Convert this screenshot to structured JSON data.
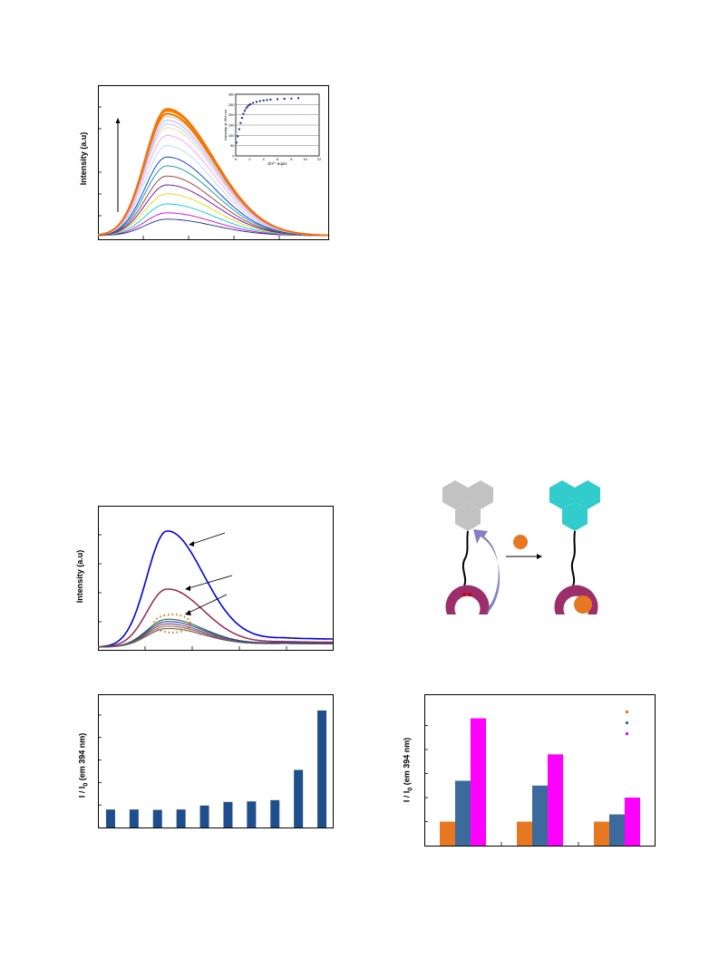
{
  "panels": {
    "spectrum_top": {
      "ylabel": "Intensity (a.u)"
    },
    "inset": {
      "ylabel": "Intensity at 394 nm",
      "xlabel": "Zn²⁺ equiv",
      "yticks": [
        "0",
        "50",
        "100",
        "150",
        "200",
        "250",
        "300"
      ],
      "xticks": [
        "0",
        "2",
        "4",
        "6",
        "8",
        "10",
        "12"
      ]
    },
    "spectrum_mid": {
      "ylabel": "Intensity (a.u)"
    },
    "bar_left": {
      "ylabel_main": "I / I",
      "ylabel_sub": "0",
      "ylabel_rest": " (em 394 nm)"
    },
    "bar_right": {
      "ylabel_main": "I / I",
      "ylabel_sub": "0",
      "ylabel_rest": " (em 394 nm)"
    }
  },
  "colors": {
    "orange": "#e87722",
    "blue_dark": "#1f4e8c",
    "steel": "#3c6a9c",
    "magenta": "#ff00ff",
    "gray_hex": "#c2c2c2",
    "cyan_hex": "#33cccc",
    "receptor": "#9c2f6a"
  },
  "chart_data": [
    {
      "type": "line",
      "panel": "top-spectrum",
      "series_count": 18,
      "peak_levels": [
        0.13,
        0.18,
        0.25,
        0.33,
        0.4,
        0.47,
        0.55,
        0.62,
        0.71,
        0.79,
        0.85,
        0.88,
        0.91,
        0.94,
        0.96,
        0.98,
        0.99,
        1.0
      ],
      "colors": [
        "#1b2a8c",
        "#cc00cc",
        "#00cccc",
        "#dddd00",
        "#6600aa",
        "#993333",
        "#009999",
        "#0033cc",
        "#aaddff",
        "#ff99ff",
        "#ffcc99",
        "#99ccff",
        "#cc99ff",
        "#ffb366",
        "#cc6600",
        "#ff9900",
        "#ff7f00",
        "#ff6600"
      ]
    },
    {
      "type": "scatter",
      "panel": "inset",
      "x": [
        0.1,
        0.3,
        0.5,
        0.7,
        0.9,
        1.1,
        1.3,
        1.5,
        1.7,
        1.9,
        2.1,
        2.5,
        3.0,
        3.5,
        4.0,
        4.5,
        5.0,
        6.0,
        7.0,
        8.0,
        9.0
      ],
      "y": [
        65,
        95,
        130,
        160,
        185,
        205,
        220,
        232,
        240,
        247,
        252,
        258,
        263,
        267,
        270,
        272,
        274,
        276,
        278,
        279,
        281
      ],
      "xlim": [
        0,
        12
      ],
      "ylim": [
        0,
        300
      ]
    },
    {
      "type": "line",
      "panel": "middle-spectrum",
      "series": [
        {
          "color": "#0000dd",
          "peak": 1.0,
          "tail": 0.1
        },
        {
          "color": "#993355",
          "peak": 0.5,
          "tail": 0.06
        },
        {
          "color": "#1a6b3a",
          "peak": 0.24,
          "tail": 0.05
        },
        {
          "color": "#2a3a9c",
          "peak": 0.22,
          "tail": 0.05
        },
        {
          "color": "#7a3b8c",
          "peak": 0.2,
          "tail": 0.04
        },
        {
          "color": "#996633",
          "peak": 0.18,
          "tail": 0.04
        },
        {
          "color": "#555555",
          "peak": 0.16,
          "tail": 0.04
        }
      ]
    },
    {
      "type": "bar",
      "panel": "bottom-left",
      "values": [
        1.0,
        1.0,
        0.98,
        1.0,
        1.22,
        1.42,
        1.45,
        1.52,
        3.2,
        6.5
      ],
      "ylim": [
        0,
        7.0
      ],
      "color": "#1f4e8c"
    },
    {
      "type": "bar",
      "panel": "bottom-right",
      "groups": 3,
      "series": [
        {
          "color": "#e87722",
          "values": [
            1.0,
            1.0,
            1.0
          ]
        },
        {
          "color": "#3c6a9c",
          "values": [
            2.7,
            2.5,
            1.3
          ]
        },
        {
          "color": "#ff00ff",
          "values": [
            5.3,
            3.8,
            2.0
          ]
        }
      ],
      "ylim": [
        0,
        6.0
      ]
    }
  ]
}
